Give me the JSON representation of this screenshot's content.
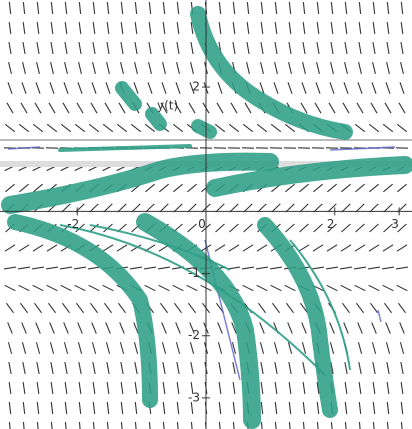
{
  "chart_data": {
    "type": "slope-field",
    "curve_label": "y(t)",
    "xlim": [
      -3.2,
      3.2
    ],
    "ylim": [
      -3.5,
      3.4
    ],
    "xticks": [
      -2,
      0,
      2,
      3
    ],
    "yticks": [
      2,
      -1,
      -2,
      -3
    ]
  }
}
